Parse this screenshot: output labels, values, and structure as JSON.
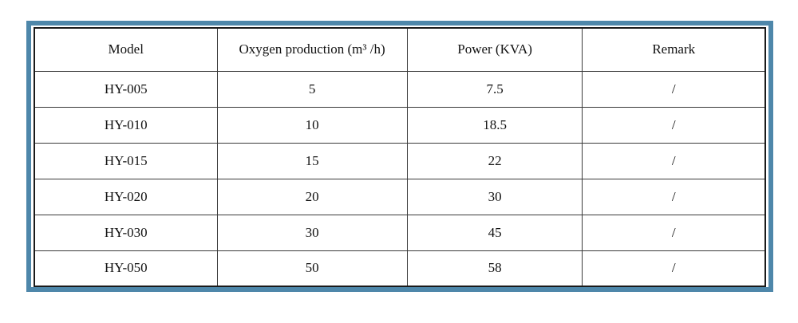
{
  "table": {
    "headers": [
      "Model",
      "Oxygen production (m³ /h)",
      "Power (KVA)",
      "Remark"
    ],
    "rows": [
      [
        "HY-005",
        "5",
        "7.5",
        "/"
      ],
      [
        "HY-010",
        "10",
        "18.5",
        "/"
      ],
      [
        "HY-015",
        "15",
        "22",
        "/"
      ],
      [
        "HY-020",
        "20",
        "30",
        "/"
      ],
      [
        "HY-030",
        "30",
        "45",
        "/"
      ],
      [
        "HY-050",
        "50",
        "58",
        "/"
      ]
    ]
  },
  "colors": {
    "frame_blue": "#4e87aa",
    "table_border": "#1a1a1a",
    "grid_line": "#3a3a3a",
    "text": "#111111",
    "background": "#ffffff"
  }
}
